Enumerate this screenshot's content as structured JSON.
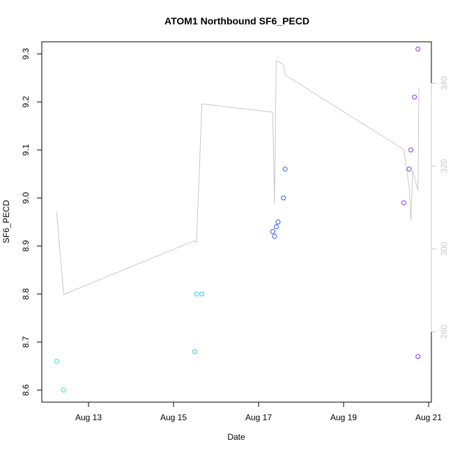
{
  "chart_data": {
    "type": "scatter",
    "title": "ATOM1 Northbound SF6_PECD",
    "xlabel": "Date",
    "ylabel": "SF6_PECD",
    "x_ticks": [
      "Aug 13",
      "Aug 15",
      "Aug 17",
      "Aug 19",
      "Aug 21"
    ],
    "y_ticks": [
      "8.6",
      "8.7",
      "8.8",
      "8.9",
      "9.0",
      "9.1",
      "9.2",
      "9.3"
    ],
    "right_axis_ticks": [
      "280",
      "300",
      "320",
      "340"
    ],
    "ylim": [
      8.575,
      9.325
    ],
    "right_ylim": [
      263,
      350
    ],
    "grid": false,
    "points": [
      {
        "x": "2016-08-12 06:00",
        "y": 8.66,
        "color": "#33e8b5"
      },
      {
        "x": "2016-08-12 10:00",
        "y": 8.6,
        "color": "#33e8b5"
      },
      {
        "x": "2016-08-15 12:00",
        "y": 8.68,
        "color": "#28cde8"
      },
      {
        "x": "2016-08-15 13:00",
        "y": 8.8,
        "color": "#28cde8"
      },
      {
        "x": "2016-08-15 16:00",
        "y": 8.8,
        "color": "#28cde8"
      },
      {
        "x": "2016-08-17 08:00",
        "y": 8.93,
        "color": "#2f57ef"
      },
      {
        "x": "2016-08-17 09:00",
        "y": 8.92,
        "color": "#2f57ef"
      },
      {
        "x": "2016-08-17 10:00",
        "y": 8.94,
        "color": "#2f57ef"
      },
      {
        "x": "2016-08-17 11:00",
        "y": 8.95,
        "color": "#2f57ef"
      },
      {
        "x": "2016-08-17 14:00",
        "y": 9.0,
        "color": "#2f57ef"
      },
      {
        "x": "2016-08-17 15:00",
        "y": 9.06,
        "color": "#2f57ef"
      },
      {
        "x": "2016-08-20 10:00",
        "y": 8.99,
        "color": "#7f2ff5"
      },
      {
        "x": "2016-08-20 13:00",
        "y": 9.06,
        "color": "#7f2ff5"
      },
      {
        "x": "2016-08-20 14:00",
        "y": 9.1,
        "color": "#7f2ff5"
      },
      {
        "x": "2016-08-20 16:00",
        "y": 9.21,
        "color": "#7f2ff5"
      },
      {
        "x": "2016-08-20 18:00",
        "y": 9.31,
        "color": "#7f2ff5"
      },
      {
        "x": "2016-08-20 18:00",
        "y": 8.67,
        "color": "#7f2ff5"
      }
    ],
    "line_series": {
      "color": "#c8c8c8",
      "axis": "right",
      "points": [
        {
          "x": "2016-08-12 06:00",
          "y": 309
        },
        {
          "x": "2016-08-12 10:00",
          "y": 289
        },
        {
          "x": "2016-08-15 12:00",
          "y": 302
        },
        {
          "x": "2016-08-15 13:00",
          "y": 301.5
        },
        {
          "x": "2016-08-15 16:00",
          "y": 335
        },
        {
          "x": "2016-08-17 08:00",
          "y": 333
        },
        {
          "x": "2016-08-17 09:00",
          "y": 311
        },
        {
          "x": "2016-08-17 10:00",
          "y": 345.5
        },
        {
          "x": "2016-08-17 14:00",
          "y": 344.5
        },
        {
          "x": "2016-08-17 15:00",
          "y": 342
        },
        {
          "x": "2016-08-20 10:00",
          "y": 324
        },
        {
          "x": "2016-08-20 13:00",
          "y": 315
        },
        {
          "x": "2016-08-20 14:00",
          "y": 307
        },
        {
          "x": "2016-08-20 15:00",
          "y": 319
        },
        {
          "x": "2016-08-20 18:00",
          "y": 314
        },
        {
          "x": "2016-08-20 18:30",
          "y": 339
        }
      ]
    }
  }
}
